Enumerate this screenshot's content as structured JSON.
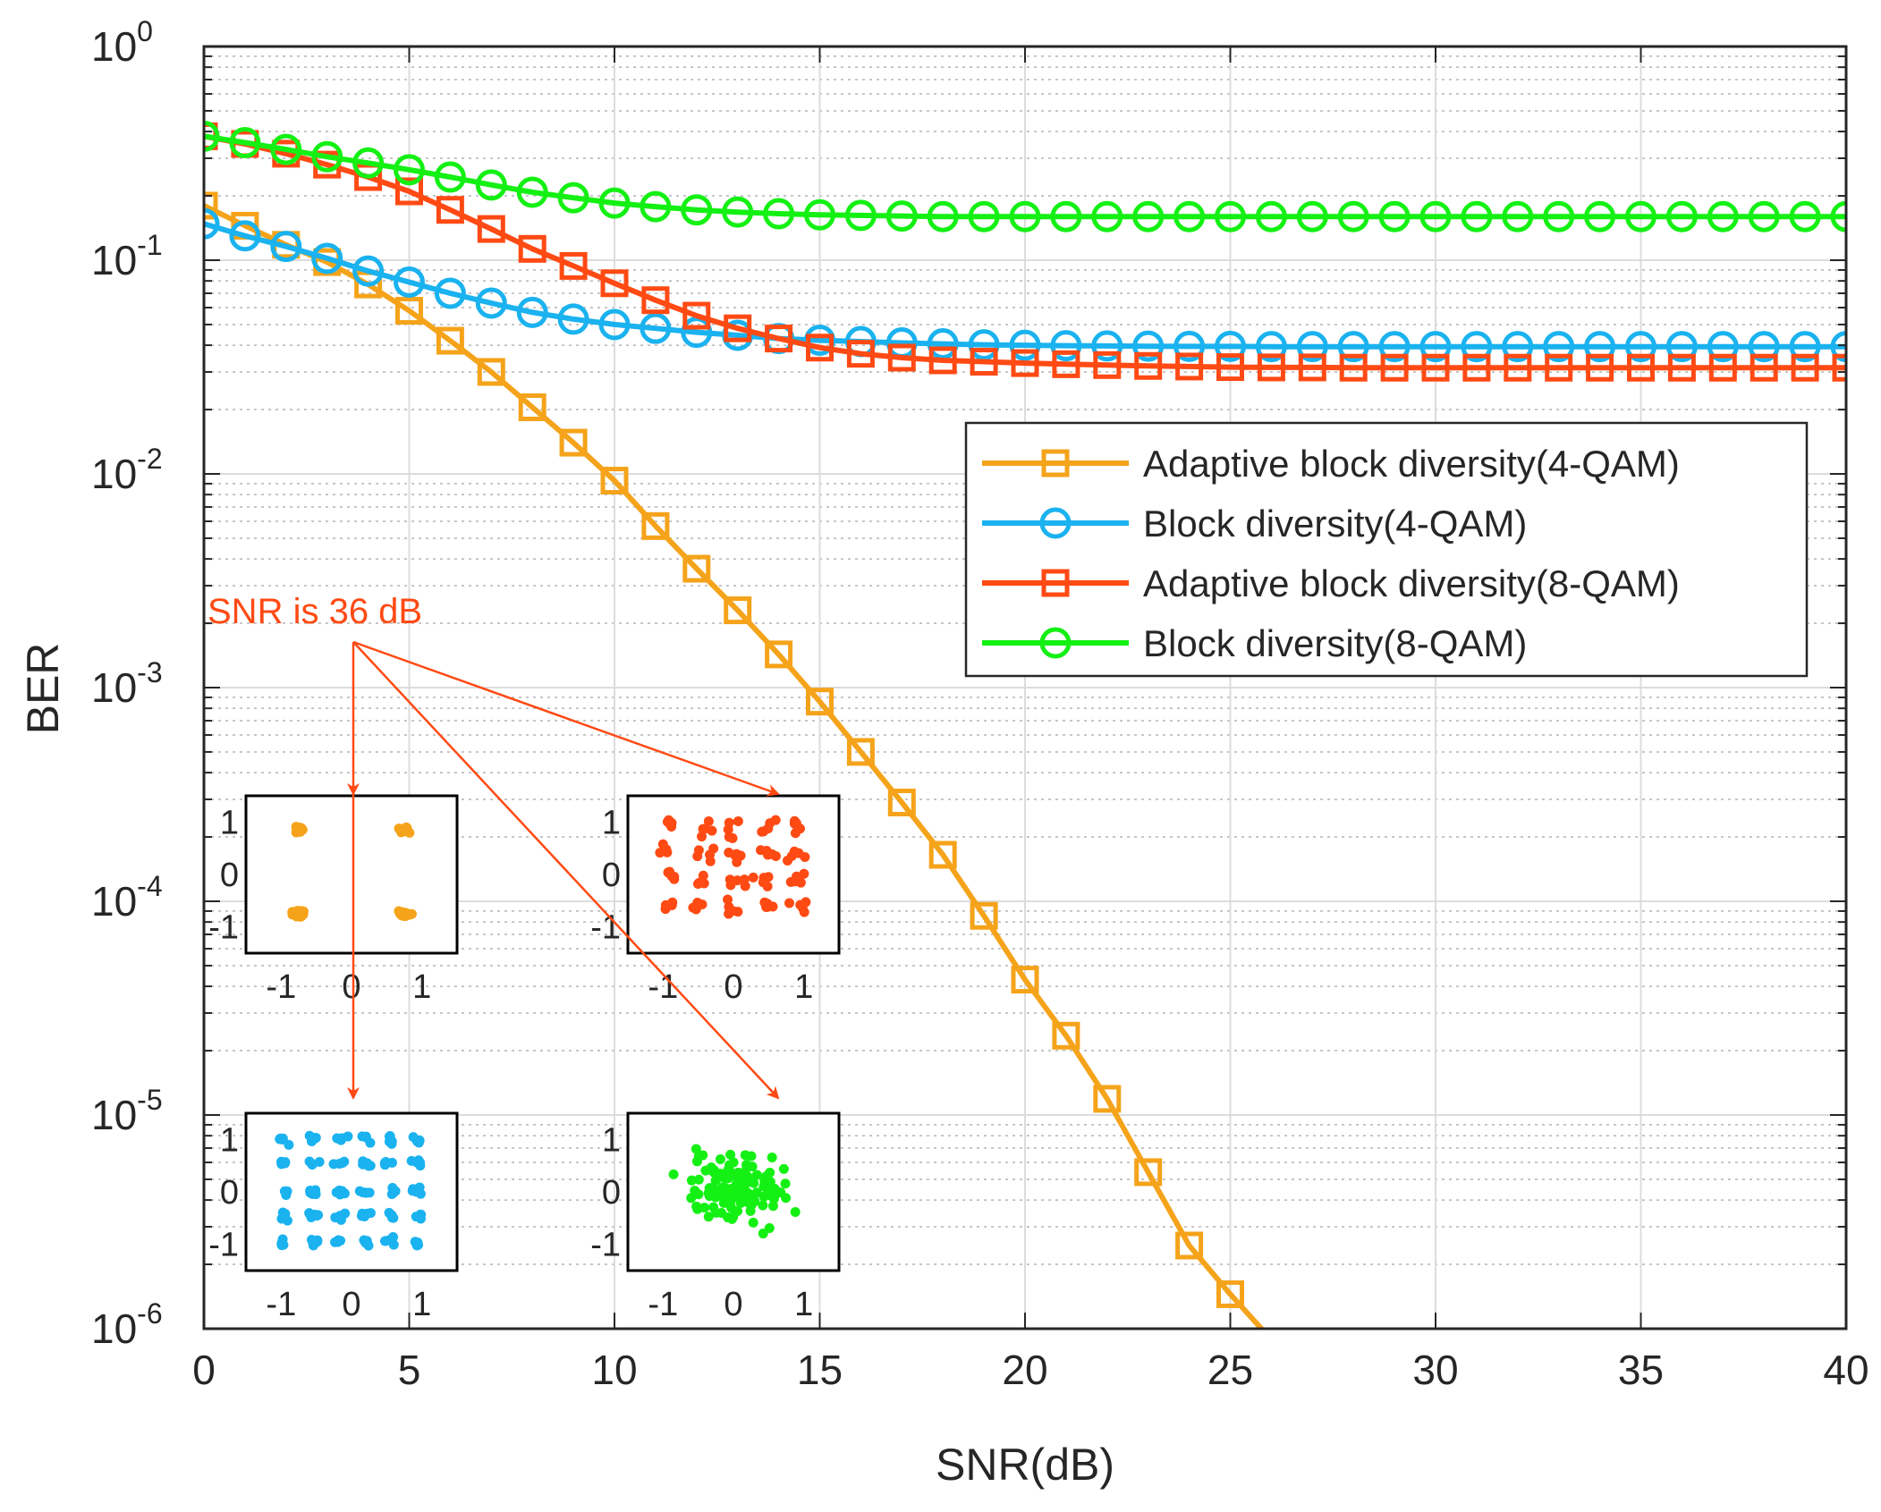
{
  "chart_data": {
    "type": "line",
    "yscale": "log",
    "xlabel": "SNR(dB)",
    "ylabel": "BER",
    "xlim": [
      0,
      40
    ],
    "ylim_exp": [
      -6,
      0
    ],
    "grid": true,
    "minor_grid": true,
    "legend_position": "right-middle",
    "xticks": [
      {
        "v": 0,
        "label": "0"
      },
      {
        "v": 5,
        "label": "5"
      },
      {
        "v": 10,
        "label": "10"
      },
      {
        "v": 15,
        "label": "15"
      },
      {
        "v": 20,
        "label": "20"
      },
      {
        "v": 25,
        "label": "25"
      },
      {
        "v": 30,
        "label": "30"
      },
      {
        "v": 35,
        "label": "35"
      },
      {
        "v": 40,
        "label": "40"
      }
    ],
    "yticks": [
      {
        "exp": 0,
        "base": "10",
        "sup": "0"
      },
      {
        "exp": -1,
        "base": "10",
        "sup": "-1"
      },
      {
        "exp": -2,
        "base": "10",
        "sup": "-2"
      },
      {
        "exp": -3,
        "base": "10",
        "sup": "-3"
      },
      {
        "exp": -4,
        "base": "10",
        "sup": "-4"
      },
      {
        "exp": -5,
        "base": "10",
        "sup": "-5"
      },
      {
        "exp": -6,
        "base": "10",
        "sup": "-6"
      }
    ],
    "series": [
      {
        "name": "Adaptive block diversity(4-QAM)",
        "color": "#f5a31a",
        "marker": "square",
        "x": [
          0,
          1,
          2,
          3,
          4,
          5,
          6,
          7,
          8,
          9,
          10,
          11,
          12,
          13,
          14,
          15,
          16,
          17,
          18,
          19,
          20,
          21,
          22,
          23,
          24,
          25,
          25.8
        ],
        "y": [
          0.18,
          0.145,
          0.118,
          0.098,
          0.077,
          0.058,
          0.042,
          0.03,
          0.0205,
          0.014,
          0.0093,
          0.0057,
          0.0036,
          0.0023,
          0.00143,
          0.00086,
          0.0005,
          0.00029,
          0.000165,
          8.55e-05,
          4.3e-05,
          2.35e-05,
          1.19e-05,
          5.4e-06,
          2.45e-06,
          1.45e-06,
          9.8e-07
        ],
        "marker_count": 26
      },
      {
        "name": "Block diversity(4-QAM)",
        "color": "#1ab2ef",
        "marker": "circle",
        "x": [
          0,
          1,
          2,
          3,
          4,
          5,
          6,
          7,
          8,
          9,
          10,
          11,
          12,
          13,
          14,
          15,
          16,
          17,
          18,
          19,
          20,
          21,
          22,
          23,
          24,
          25,
          26,
          27,
          28,
          29,
          30,
          31,
          32,
          33,
          34,
          35,
          36,
          37,
          38,
          39,
          40
        ],
        "y": [
          0.148,
          0.13,
          0.116,
          0.102,
          0.089,
          0.079,
          0.07,
          0.063,
          0.057,
          0.053,
          0.05,
          0.048,
          0.046,
          0.0445,
          0.043,
          0.0422,
          0.0416,
          0.041,
          0.0406,
          0.0402,
          0.04,
          0.0398,
          0.0397,
          0.0396,
          0.0395,
          0.0395,
          0.0394,
          0.0394,
          0.0394,
          0.0394,
          0.0394,
          0.0394,
          0.0394,
          0.0394,
          0.0394,
          0.0394,
          0.0394,
          0.0394,
          0.0394,
          0.0394,
          0.0394
        ]
      },
      {
        "name": "Adaptive block diversity(8-QAM)",
        "color": "#ff4a14",
        "marker": "square",
        "x": [
          0,
          1,
          2,
          3,
          4,
          5,
          6,
          7,
          8,
          9,
          10,
          11,
          12,
          13,
          14,
          15,
          16,
          17,
          18,
          19,
          20,
          21,
          22,
          23,
          24,
          25,
          26,
          27,
          28,
          29,
          30,
          31,
          32,
          33,
          34,
          35,
          36,
          37,
          38,
          39,
          40
        ],
        "y": [
          0.38,
          0.35,
          0.315,
          0.28,
          0.245,
          0.21,
          0.172,
          0.14,
          0.113,
          0.094,
          0.078,
          0.065,
          0.055,
          0.048,
          0.043,
          0.039,
          0.0365,
          0.035,
          0.034,
          0.0335,
          0.033,
          0.0326,
          0.0323,
          0.032,
          0.0318,
          0.0316,
          0.0315,
          0.0315,
          0.0314,
          0.0314,
          0.0314,
          0.0314,
          0.0314,
          0.0314,
          0.0314,
          0.0314,
          0.0314,
          0.0314,
          0.0314,
          0.0314,
          0.0314
        ]
      },
      {
        "name": "Block diversity(8-QAM)",
        "color": "#14f014",
        "marker": "circle",
        "x": [
          0,
          1,
          2,
          3,
          4,
          5,
          6,
          7,
          8,
          9,
          10,
          11,
          12,
          13,
          14,
          15,
          16,
          17,
          18,
          19,
          20,
          21,
          22,
          23,
          24,
          25,
          26,
          27,
          28,
          29,
          30,
          31,
          32,
          33,
          34,
          35,
          36,
          37,
          38,
          39,
          40
        ],
        "y": [
          0.38,
          0.355,
          0.33,
          0.305,
          0.285,
          0.265,
          0.245,
          0.225,
          0.208,
          0.196,
          0.185,
          0.178,
          0.172,
          0.168,
          0.165,
          0.163,
          0.162,
          0.161,
          0.16,
          0.16,
          0.16,
          0.16,
          0.16,
          0.16,
          0.16,
          0.16,
          0.16,
          0.16,
          0.16,
          0.16,
          0.16,
          0.16,
          0.16,
          0.16,
          0.16,
          0.16,
          0.16,
          0.16,
          0.16,
          0.16,
          0.16
        ]
      }
    ],
    "annotation": {
      "text": "SNR is 36 dB",
      "color": "#ff4a14"
    },
    "insets": [
      {
        "name": "4-QAM adaptive constellation",
        "color": "#f5a31a",
        "type": "scatter",
        "xlim": [
          -1.5,
          1.5
        ],
        "ylim": [
          -1.5,
          1.5
        ],
        "xticks": [
          "-1",
          "0",
          "1"
        ],
        "yticks": [
          "1",
          "0",
          "-1"
        ],
        "pattern": "qam4"
      },
      {
        "name": "8-QAM adaptive constellation",
        "color": "#ff4a14",
        "type": "scatter",
        "xlim": [
          -1.5,
          1.5
        ],
        "ylim": [
          -1.5,
          1.5
        ],
        "xticks": [
          "-1",
          "0",
          "1"
        ],
        "yticks": [
          "1",
          "0",
          "-1"
        ],
        "pattern": "grid8"
      },
      {
        "name": "4-QAM block constellation",
        "color": "#1ab2ef",
        "type": "scatter",
        "xlim": [
          -1.5,
          1.5
        ],
        "ylim": [
          -1.5,
          1.5
        ],
        "xticks": [
          "-1",
          "0",
          "1"
        ],
        "yticks": [
          "1",
          "0",
          "-1"
        ],
        "pattern": "grid6"
      },
      {
        "name": "8-QAM block constellation",
        "color": "#14f014",
        "type": "scatter",
        "xlim": [
          -1.5,
          1.5
        ],
        "ylim": [
          -1.5,
          1.5
        ],
        "xticks": [
          "-1",
          "0",
          "1"
        ],
        "yticks": [
          "1",
          "0",
          "-1"
        ],
        "pattern": "noisy"
      }
    ]
  }
}
